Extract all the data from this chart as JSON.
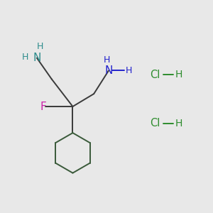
{
  "bg_color": "#e8e8e8",
  "bond_color": "#3a3a3a",
  "N_color_left": "#2d8c8c",
  "N_color_right": "#2222cc",
  "F_color": "#cc22aa",
  "Cl_color": "#2d8c2d",
  "ring_color": "#3a5a3a",
  "qc": [
    0.34,
    0.5
  ],
  "clh1": [
    0.73,
    0.42
  ],
  "clh2": [
    0.73,
    0.65
  ]
}
